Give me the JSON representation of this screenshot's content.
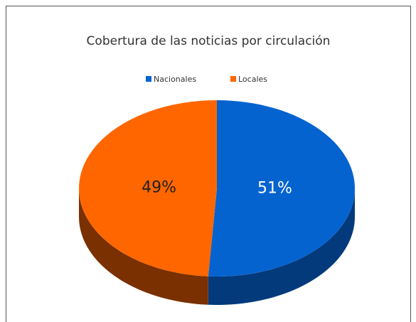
{
  "chart_data": {
    "type": "pie3d",
    "title": "Cobertura de las noticias por circulación",
    "categories": [
      "Nacionales",
      "Locales"
    ],
    "values": [
      51,
      49
    ],
    "value_labels": [
      "51%",
      "49%"
    ],
    "colors": [
      "#0563d0",
      "#ff6600"
    ],
    "side_colors": [
      "#033a7c",
      "#7a3000"
    ],
    "label_colors": [
      "#ffffff",
      "#222222"
    ],
    "legend": "top"
  }
}
